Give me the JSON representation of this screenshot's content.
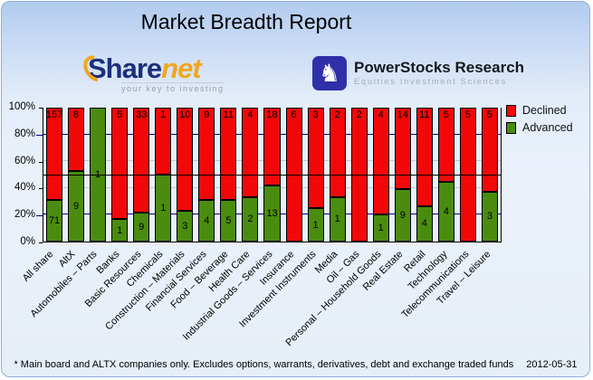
{
  "header": {
    "title": "Market Breadth Report"
  },
  "logos": {
    "sharenet": {
      "name_main": "Share",
      "name_accent": "net",
      "tagline": "your key to investing",
      "accent_color": "#F2A71D",
      "main_color": "#1D2F7B"
    },
    "powerstocks": {
      "knight": "♞",
      "name": "PowerStocks Research",
      "subtitle": "Equities Investment Sciences",
      "icon_color": "#2F2FA9"
    }
  },
  "chart_data": {
    "type": "bar",
    "stacked": true,
    "stack_mode": "percent",
    "categories": [
      "All share",
      "AltX",
      "Automobiles – Parts",
      "Banks",
      "Basic Resources",
      "Chemicals",
      "Construction – Materials",
      "Financial Services",
      "Food – Beverage",
      "Health Care",
      "Industrial Goods – Services",
      "Insurance",
      "Investment Instruments",
      "Media",
      "Oil – Gas",
      "Personal – Household Goods",
      "Real Estate",
      "Retail",
      "Technology",
      "Telecommunications",
      "Travel – Leisure"
    ],
    "series": [
      {
        "name": "Declined",
        "color": "#F20808",
        "values": [
          157,
          8,
          0,
          5,
          33,
          1,
          10,
          9,
          11,
          4,
          18,
          6,
          3,
          2,
          2,
          4,
          14,
          11,
          5,
          5,
          5
        ]
      },
      {
        "name": "Advanced",
        "color": "#4A8C0F",
        "values": [
          71,
          9,
          1,
          1,
          9,
          1,
          3,
          4,
          5,
          2,
          13,
          0,
          1,
          1,
          0,
          1,
          9,
          4,
          4,
          0,
          3
        ]
      }
    ],
    "y_ticks": [
      {
        "label": "100%",
        "pct": 100
      },
      {
        "label": "80%",
        "pct": 80
      },
      {
        "label": "60%",
        "pct": 60
      },
      {
        "label": "40%",
        "pct": 40
      },
      {
        "label": "20%",
        "pct": 20
      },
      {
        "label": "0%",
        "pct": 0
      }
    ],
    "ylim": [
      0,
      100
    ],
    "reference_line_pct": 50,
    "gridline_navy_color": "#00008B",
    "gridline_gray_color": "#C2C6CC",
    "legend_position": "right",
    "xlabel": "",
    "ylabel": ""
  },
  "footer": {
    "note": "* Main board and ALTX companies only. Excludes options, warrants, derivatives, debt and exchange traded funds",
    "date": "2012-05-31"
  }
}
